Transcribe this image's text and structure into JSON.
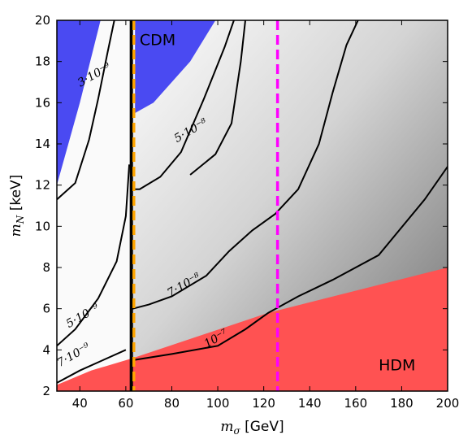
{
  "chart_data": {
    "type": "contour",
    "xlabel": "m_σ [GeV]",
    "ylabel": "m_N [keV]",
    "xlim": [
      30,
      200
    ],
    "ylim": [
      2,
      20
    ],
    "xticks": [
      40,
      60,
      80,
      100,
      120,
      140,
      160,
      180,
      200
    ],
    "yticks": [
      2,
      4,
      6,
      8,
      10,
      12,
      14,
      16,
      18,
      20
    ],
    "colors": {
      "cdm_region": "#4a4af2",
      "hdm_region": "#ff5252",
      "higgs_line": "#ffa500",
      "mass_line": "#ff00ff",
      "vertical_black": "#000000"
    },
    "regions": [
      {
        "name": "CDM",
        "label": "CDM",
        "polygon": [
          [
            30,
            20
          ],
          [
            49,
            20
          ],
          [
            40,
            16
          ],
          [
            30,
            12
          ]
        ],
        "note": "left blue region"
      },
      {
        "name": "CDM-right",
        "label": "",
        "polygon": [
          [
            64,
            20
          ],
          [
            99,
            20
          ],
          [
            88,
            18
          ],
          [
            72,
            16
          ],
          [
            64,
            15.5
          ]
        ]
      },
      {
        "name": "HDM",
        "label": "HDM",
        "polygon": [
          [
            30,
            2
          ],
          [
            200,
            2
          ],
          [
            200,
            8
          ],
          [
            122,
            5.8
          ],
          [
            63,
            3.6
          ],
          [
            45,
            3
          ],
          [
            30,
            2.3
          ]
        ]
      }
    ],
    "vertical_lines": [
      {
        "name": "black",
        "x": 62.4,
        "style": "solid"
      },
      {
        "name": "orange",
        "x": 63.5,
        "style": "dashed"
      },
      {
        "name": "magenta",
        "x": 126,
        "style": "dashed"
      }
    ],
    "contours": [
      {
        "label": "3·10⁻⁹",
        "label_at": [
          47,
          17.2
        ],
        "points_left": [
          [
            30,
            11.3
          ],
          [
            38,
            12.1
          ],
          [
            44,
            14.2
          ],
          [
            48,
            16.2
          ],
          [
            52,
            18.4
          ],
          [
            55,
            20
          ]
        ]
      },
      {
        "label": "5·10⁻⁸",
        "label_at": [
          89,
          14.5
        ],
        "points_left": [],
        "points_right": [
          [
            63,
            11.8
          ],
          [
            66,
            11.8
          ],
          [
            75,
            12.4
          ],
          [
            84,
            13.6
          ],
          [
            94,
            16.2
          ],
          [
            103,
            18.7
          ],
          [
            107,
            20
          ]
        ]
      },
      {
        "label": "5·10⁻⁹",
        "label_at": [
          42,
          5.5
        ],
        "points_left": [
          [
            30,
            4.2
          ],
          [
            38,
            5.0
          ],
          [
            48,
            6.5
          ],
          [
            56,
            8.3
          ],
          [
            60,
            10.5
          ],
          [
            61.5,
            13
          ]
        ],
        "points_right": []
      },
      {
        "label": "7·10⁻⁹",
        "label_at": [
          38,
          3.6
        ],
        "points_left": [
          [
            30,
            2.4
          ],
          [
            40,
            3.0
          ],
          [
            50,
            3.5
          ],
          [
            60,
            4.0
          ]
        ]
      },
      {
        "label": "7·10⁻⁸",
        "label_at": [
          86,
          7.0
        ],
        "points_right": [
          [
            63,
            6.0
          ],
          [
            70,
            6.2
          ],
          [
            80,
            6.6
          ],
          [
            95,
            7.6
          ],
          [
            105,
            8.8
          ],
          [
            115,
            9.8
          ],
          [
            125,
            10.6
          ],
          [
            135,
            11.8
          ],
          [
            144,
            14
          ],
          [
            150,
            16.5
          ],
          [
            156,
            18.8
          ],
          [
            161,
            20
          ]
        ]
      },
      {
        "label": "",
        "points_right": [
          [
            112,
            20
          ],
          [
            110,
            18
          ],
          [
            106,
            15
          ],
          [
            99,
            13.5
          ],
          [
            88,
            12.5
          ]
        ]
      },
      {
        "label": "10⁻⁷",
        "label_at": [
          100,
          4.4
        ],
        "points_right": [
          [
            63,
            3.5
          ],
          [
            80,
            3.8
          ],
          [
            100,
            4.2
          ],
          [
            112,
            5.0
          ],
          [
            122,
            5.8
          ],
          [
            135,
            6.6
          ],
          [
            150,
            7.4
          ],
          [
            170,
            8.6
          ],
          [
            190,
            11.3
          ],
          [
            200,
            12.9
          ]
        ]
      }
    ]
  },
  "text": {
    "cdm_label": "CDM",
    "hdm_label": "HDM",
    "xlabel_math": "m",
    "xlabel_sub": "σ",
    "xlabel_unit": " [GeV]",
    "ylabel_math": "m",
    "ylabel_sub": "N",
    "ylabel_unit": " [keV]"
  }
}
